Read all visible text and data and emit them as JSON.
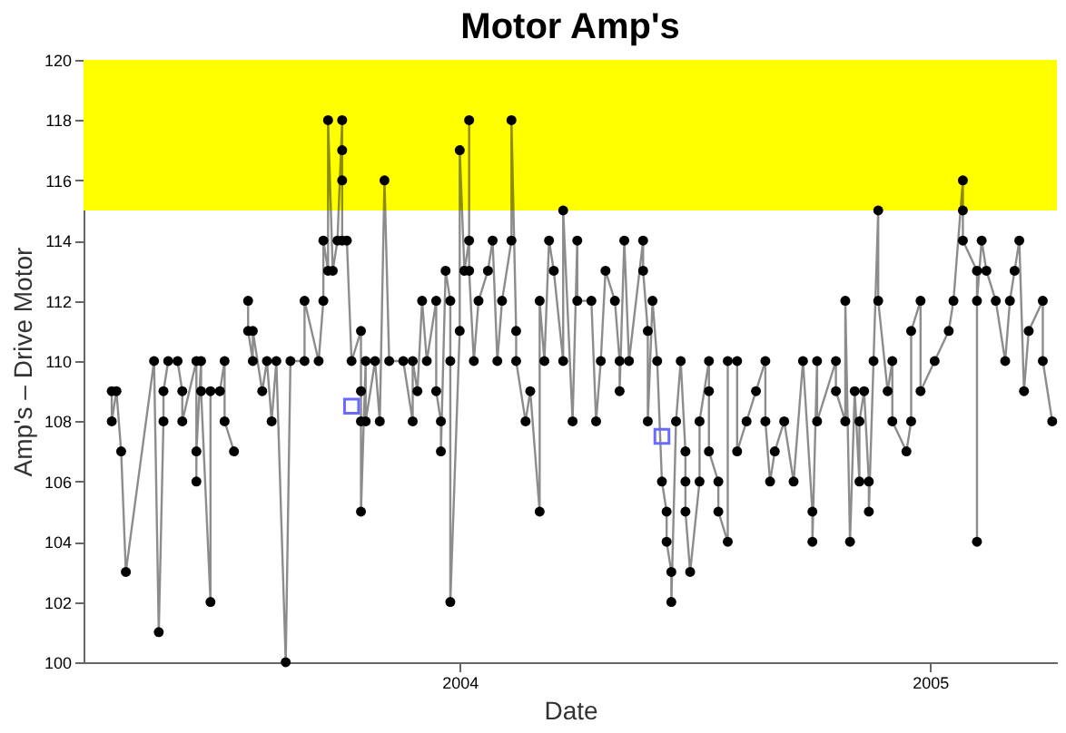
{
  "chart_data": {
    "type": "line",
    "title": "Motor Amp's",
    "xlabel": "Date",
    "ylabel": "Amp's – Drive Motor",
    "xlim": [
      2003.2,
      2005.27
    ],
    "xticks": [
      2004,
      2005
    ],
    "ylim": [
      100,
      120
    ],
    "yticks": [
      100,
      102,
      104,
      106,
      108,
      110,
      112,
      114,
      116,
      118,
      120
    ],
    "grid": false,
    "marker": "circle",
    "line_style": "solid",
    "bands": [
      {
        "axis": "y",
        "from": 115,
        "to": 120,
        "color": "#ffff00"
      }
    ],
    "series": [
      {
        "color": "#000000",
        "x": [
          2003.26,
          2003.26,
          2003.27,
          2003.28,
          2003.29,
          2003.35,
          2003.36,
          2003.37,
          2003.37,
          2003.38,
          2003.4,
          2003.41,
          2003.41,
          2003.44,
          2003.44,
          2003.44,
          2003.45,
          2003.45,
          2003.47,
          2003.47,
          2003.49,
          2003.5,
          2003.5,
          2003.52,
          2003.53,
          2003.55,
          2003.55,
          2003.56,
          2003.56,
          2003.58,
          2003.59,
          2003.6,
          2003.61,
          2003.63,
          2003.64,
          2003.67,
          2003.67,
          2003.7,
          2003.71,
          2003.71,
          2003.72,
          2003.72,
          2003.73,
          2003.74,
          2003.75,
          2003.75,
          2003.75,
          2003.75,
          2003.76,
          2003.77,
          2003.79,
          2003.79,
          2003.79,
          2003.79,
          2003.8,
          2003.8,
          2003.82,
          2003.83,
          2003.84,
          2003.85,
          2003.88,
          2003.9,
          2003.9,
          2003.91,
          2003.92,
          2003.93,
          2003.95,
          2003.95,
          2003.96,
          2003.96,
          2003.97,
          2003.98,
          2003.98,
          2003.98,
          2004.0,
          2004.0,
          2004.01,
          2004.02,
          2004.02,
          2004.02,
          2004.03,
          2004.04,
          2004.06,
          2004.07,
          2004.08,
          2004.09,
          2004.11,
          2004.11,
          2004.12,
          2004.12,
          2004.14,
          2004.15,
          2004.17,
          2004.17,
          2004.18,
          2004.19,
          2004.2,
          2004.22,
          2004.22,
          2004.24,
          2004.25,
          2004.25,
          2004.28,
          2004.29,
          2004.3,
          2004.31,
          2004.33,
          2004.34,
          2004.34,
          2004.35,
          2004.36,
          2004.39,
          2004.39,
          2004.4,
          2004.4,
          2004.41,
          2004.42,
          2004.43,
          2004.44,
          2004.44,
          2004.45,
          2004.45,
          2004.46,
          2004.47,
          2004.48,
          2004.48,
          2004.48,
          2004.49,
          2004.51,
          2004.51,
          2004.53,
          2004.53,
          2004.53,
          2004.55,
          2004.55,
          2004.57,
          2004.57,
          2004.59,
          2004.59,
          2004.61,
          2004.63,
          2004.65,
          2004.65,
          2004.66,
          2004.67,
          2004.69,
          2004.71,
          2004.73,
          2004.75,
          2004.75,
          2004.76,
          2004.76,
          2004.8,
          2004.8,
          2004.82,
          2004.82,
          2004.83,
          2004.84,
          2004.85,
          2004.85,
          2004.86,
          2004.87,
          2004.87,
          2004.88,
          2004.89,
          2004.89,
          2004.91,
          2004.92,
          2004.92,
          2004.95,
          2004.96,
          2004.96,
          2004.98,
          2004.98,
          2005.01,
          2005.04,
          2005.05,
          2005.07,
          2005.07,
          2005.07,
          2005.1,
          2005.1,
          2005.1,
          2005.11,
          2005.12,
          2005.14,
          2005.16,
          2005.17,
          2005.18,
          2005.19,
          2005.2,
          2005.21,
          2005.24,
          2005.24,
          2005.26
        ],
        "values": [
          109,
          108,
          109,
          107,
          103,
          110,
          101,
          108,
          109,
          110,
          110,
          109,
          108,
          110,
          106,
          107,
          110,
          109,
          102,
          109,
          109,
          110,
          108,
          107,
          null,
          112,
          111,
          110,
          111,
          109,
          110,
          108,
          110,
          100,
          110,
          110,
          112,
          110,
          112,
          114,
          113,
          118,
          113,
          114,
          118,
          117,
          116,
          114,
          114,
          110,
          111,
          109,
          108,
          105,
          110,
          108,
          110,
          108,
          116,
          110,
          110,
          108,
          110,
          109,
          112,
          110,
          112,
          109,
          108,
          107,
          113,
          112,
          110,
          102,
          111,
          117,
          113,
          114,
          118,
          113,
          110,
          112,
          113,
          114,
          110,
          112,
          114,
          118,
          111,
          110,
          108,
          109,
          105,
          112,
          110,
          114,
          113,
          110,
          115,
          108,
          114,
          112,
          112,
          108,
          110,
          113,
          112,
          110,
          109,
          114,
          110,
          114,
          113,
          111,
          108,
          112,
          110,
          106,
          105,
          104,
          103,
          102,
          108,
          110,
          107,
          106,
          105,
          103,
          106,
          108,
          110,
          109,
          107,
          106,
          105,
          104,
          110,
          110,
          107,
          108,
          109,
          110,
          108,
          106,
          107,
          108,
          106,
          110,
          105,
          104,
          110,
          108,
          110,
          109,
          108,
          112,
          104,
          109,
          106,
          108,
          109,
          106,
          105,
          110,
          115,
          112,
          109,
          110,
          108,
          107,
          108,
          111,
          112,
          109,
          110,
          111,
          112,
          116,
          115,
          114,
          113,
          104,
          112,
          114,
          113,
          112,
          110,
          112,
          113,
          114,
          109,
          111,
          112,
          110,
          108
        ]
      },
      {
        "color": "#6a6aff",
        "type": "scatter",
        "marker": "square",
        "x": [
          2003.77,
          2004.43
        ],
        "values": [
          108.5,
          107.5
        ]
      }
    ]
  }
}
